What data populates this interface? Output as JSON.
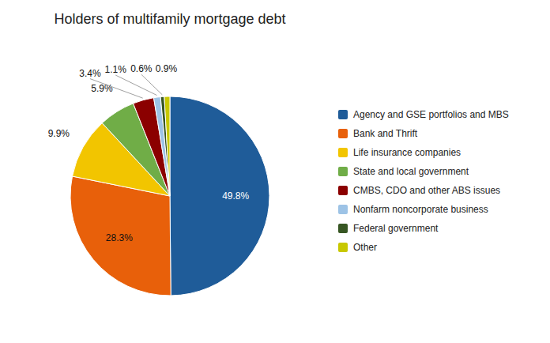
{
  "chart_data": {
    "type": "pie",
    "title": "Holders of multifamily mortgage debt",
    "categories": [
      "Agency and GSE portfolios and MBS",
      "Bank and Thrift",
      "Life insurance companies",
      "State and local government",
      "CMBS, CDO and other ABS issues",
      "Nonfarm noncorporate business",
      "Federal government",
      "Other"
    ],
    "values": [
      49.8,
      28.3,
      9.9,
      5.9,
      3.4,
      1.1,
      0.6,
      0.9
    ],
    "value_labels": [
      "49.8%",
      "28.3%",
      "9.9%",
      "5.9%",
      "3.4%",
      "1.1%",
      "0.6%",
      "0.9%"
    ],
    "colors": [
      "#1F5C99",
      "#E8600A",
      "#F2C500",
      "#70AD47",
      "#8B0000",
      "#9DC3E6",
      "#375623",
      "#C8C800"
    ],
    "data_labels": true,
    "legend": "right"
  }
}
